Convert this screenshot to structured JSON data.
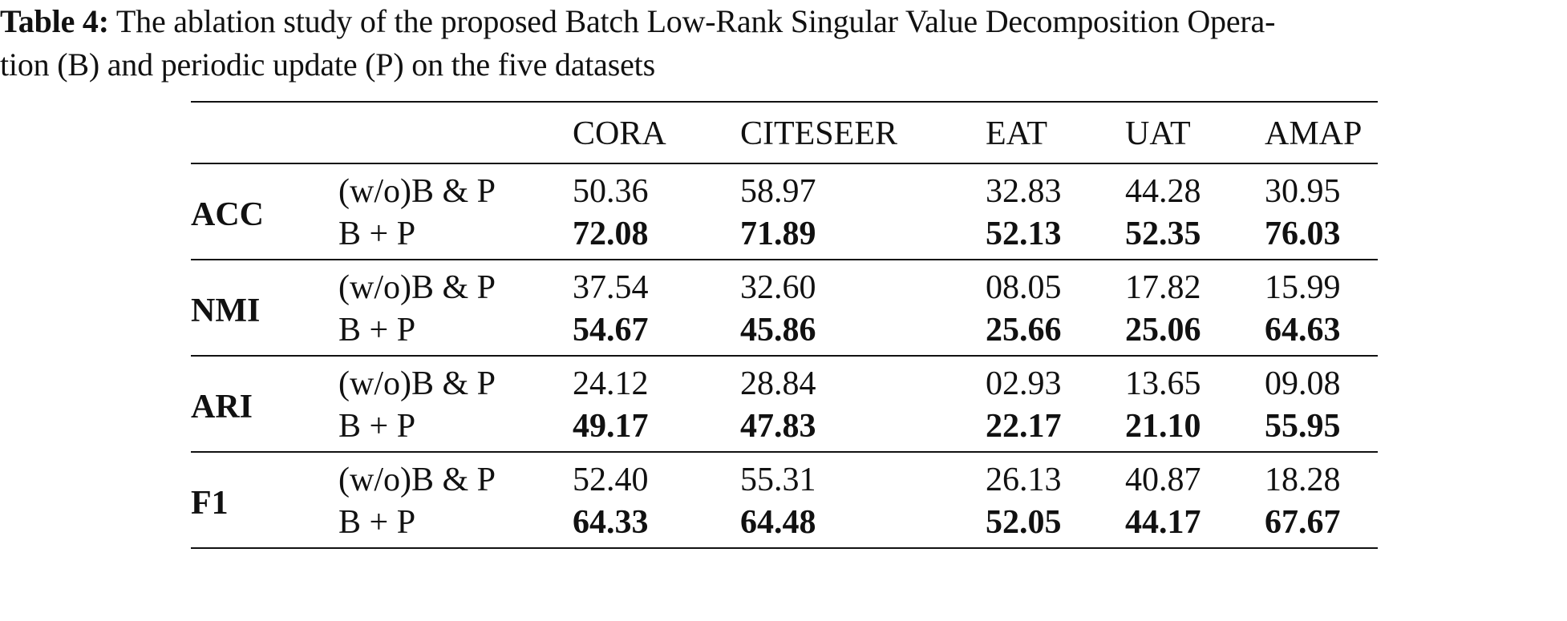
{
  "caption": {
    "label": "Table 4:",
    "text_line1": " The ablation study of the proposed Batch Low-Rank Singular Value Decomposition Opera-",
    "text_line2": "tion (B) and periodic update (P) on the five datasets"
  },
  "table": {
    "columns": [
      "CORA",
      "CITESEER",
      "EAT",
      "UAT",
      "AMAP"
    ],
    "groups": [
      {
        "metric": "ACC",
        "rows": [
          {
            "method": "(w/o)B & P",
            "values": [
              "50.36",
              "58.97",
              "32.83",
              "44.28",
              "30.95"
            ]
          },
          {
            "method": "B + P",
            "values": [
              "72.08",
              "71.89",
              "52.13",
              "52.35",
              "76.03"
            ]
          }
        ]
      },
      {
        "metric": "NMI",
        "rows": [
          {
            "method": "(w/o)B & P",
            "values": [
              "37.54",
              "32.60",
              "08.05",
              "17.82",
              "15.99"
            ]
          },
          {
            "method": "B + P",
            "values": [
              "54.67",
              "45.86",
              "25.66",
              "25.06",
              "64.63"
            ]
          }
        ]
      },
      {
        "metric": "ARI",
        "rows": [
          {
            "method": "(w/o)B & P",
            "values": [
              "24.12",
              "28.84",
              "02.93",
              "13.65",
              "09.08"
            ]
          },
          {
            "method": "B + P",
            "values": [
              "49.17",
              "47.83",
              "22.17",
              "21.10",
              "55.95"
            ]
          }
        ]
      },
      {
        "metric": "F1",
        "rows": [
          {
            "method": "(w/o)B & P",
            "values": [
              "52.40",
              "55.31",
              "26.13",
              "40.87",
              "18.28"
            ]
          },
          {
            "method": "B + P",
            "values": [
              "64.33",
              "64.48",
              "52.05",
              "44.17",
              "67.67"
            ]
          }
        ]
      }
    ]
  }
}
